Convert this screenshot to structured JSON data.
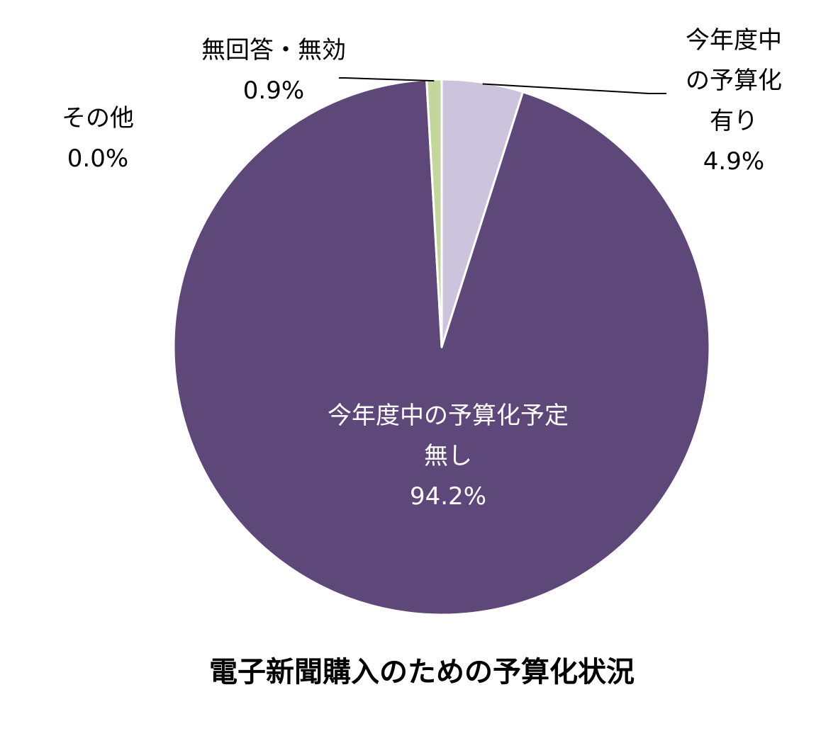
{
  "chart_data": {
    "type": "pie",
    "title": "電子新聞購入のための予算化状況",
    "slices": [
      {
        "label_lines": [
          "今年度中",
          "の予算化",
          "有り"
        ],
        "value": 4.9,
        "value_label": "4.9%",
        "color": "#ccc3dd"
      },
      {
        "label_lines": [
          "今年度中の予算化予定",
          "無し"
        ],
        "value": 94.2,
        "value_label": "94.2%",
        "color": "#5e4879"
      },
      {
        "label_lines": [
          "その他"
        ],
        "value": 0.0,
        "value_label": "0.0%",
        "color": "#8064a2"
      },
      {
        "label_lines": [
          "無回答・無効"
        ],
        "value": 0.9,
        "value_label": "0.9%",
        "color": "#c3d69b"
      }
    ],
    "start_angle_deg": 0,
    "direction": "clockwise",
    "legend": "none"
  }
}
